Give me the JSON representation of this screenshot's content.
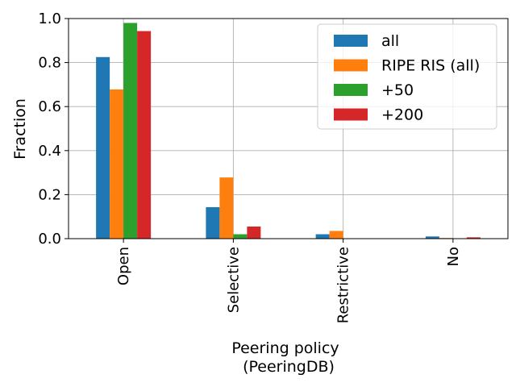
{
  "chart_data": {
    "type": "bar",
    "categories": [
      "Open",
      "Selective",
      "Restrictive",
      "No"
    ],
    "series": [
      {
        "name": "all",
        "color": "#1f77b4",
        "values": [
          0.825,
          0.143,
          0.02,
          0.01
        ]
      },
      {
        "name": "RIPE RIS (all)",
        "color": "#ff7f0e",
        "values": [
          0.678,
          0.278,
          0.035,
          0.003
        ]
      },
      {
        "name": "+50",
        "color": "#2ca02c",
        "values": [
          0.98,
          0.02,
          0.0,
          0.0
        ]
      },
      {
        "name": "+200",
        "color": "#d62728",
        "values": [
          0.943,
          0.055,
          0.0,
          0.006
        ]
      }
    ],
    "title": "",
    "xlabel": [
      "Peering policy",
      "(PeeringDB)"
    ],
    "ylabel": "Fraction",
    "ylim": [
      0,
      1.0
    ],
    "yticks": [
      "0.0",
      "0.2",
      "0.4",
      "0.6",
      "0.8",
      "1.0"
    ],
    "grid": true,
    "legend_position": "top-right"
  }
}
